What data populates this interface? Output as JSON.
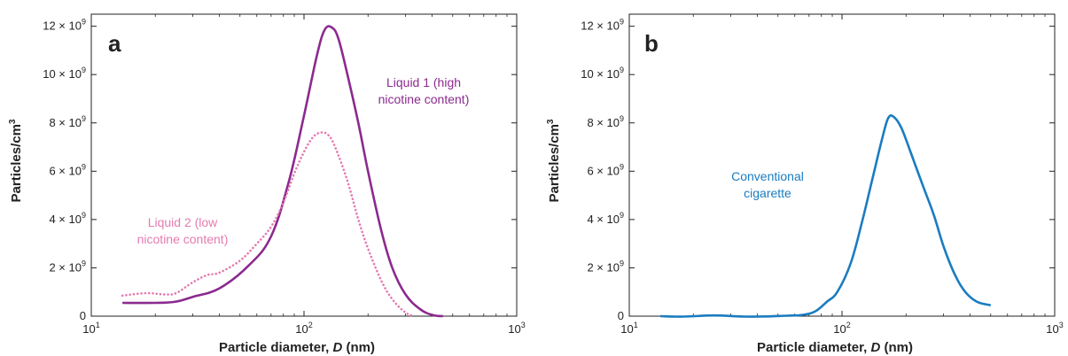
{
  "chart_data": [
    {
      "type": "line",
      "panel_label": "a",
      "xlabel_prefix": "Particle diameter, ",
      "xlabel_var": "D",
      "xlabel_suffix": " (nm)",
      "ylabel": "Particles/cm",
      "ylabel_sup": "3",
      "x_scale": "log",
      "xlim": [
        10,
        1000
      ],
      "ylim": [
        0,
        12500000000.0
      ],
      "x_ticks": [
        {
          "value": 10,
          "base": "10",
          "exp": "1"
        },
        {
          "value": 100,
          "base": "10",
          "exp": "2"
        },
        {
          "value": 1000,
          "base": "10",
          "exp": "3"
        }
      ],
      "y_ticks": [
        {
          "value": 0,
          "mant": "0",
          "sep": "",
          "base": "",
          "exp": ""
        },
        {
          "value": 2000000000.0,
          "mant": "2",
          "sep": " × ",
          "base": "10",
          "exp": "9"
        },
        {
          "value": 4000000000.0,
          "mant": "4",
          "sep": " × ",
          "base": "10",
          "exp": "9"
        },
        {
          "value": 6000000000.0,
          "mant": "6",
          "sep": " × ",
          "base": "10",
          "exp": "9"
        },
        {
          "value": 8000000000.0,
          "mant": "8",
          "sep": " × ",
          "base": "10",
          "exp": "9"
        },
        {
          "value": 10000000000.0,
          "mant": "10",
          "sep": " × ",
          "base": "10",
          "exp": "9"
        },
        {
          "value": 12000000000.0,
          "mant": "12",
          "sep": " × ",
          "base": "10",
          "exp": "9"
        }
      ],
      "grid": false,
      "series": [
        {
          "name_lines": [
            "Liquid 1 (high",
            "nicotine content)"
          ],
          "color": "#8b2a8e",
          "style": "solid",
          "label_position": "upper-right",
          "x": [
            14,
            20,
            25,
            30,
            40,
            55,
            70,
            85,
            100,
            115,
            125,
            135,
            145,
            160,
            180,
            200,
            230,
            260,
            300,
            350,
            400,
            450
          ],
          "y": [
            550000000.0,
            550000000.0,
            600000000.0,
            800000000.0,
            1150000000.0,
            2100000000.0,
            3300000000.0,
            5600000000.0,
            8300000000.0,
            10800000000.0,
            11850000000.0,
            11950000000.0,
            11500000000.0,
            10000000000.0,
            8000000000.0,
            6000000000.0,
            3600000000.0,
            2000000000.0,
            900000000.0,
            300000000.0,
            50000000.0,
            0
          ]
        },
        {
          "name_lines": [
            "Liquid 2 (low",
            "nicotine content)"
          ],
          "color": "#e57ab0",
          "style": "dotted",
          "label_position": "left",
          "x": [
            14,
            18,
            22,
            25,
            30,
            35,
            40,
            50,
            60,
            70,
            80,
            90,
            100,
            110,
            120,
            130,
            140,
            160,
            180,
            200,
            230,
            260,
            300,
            330
          ],
          "y": [
            850000000.0,
            950000000.0,
            900000000.0,
            950000000.0,
            1400000000.0,
            1700000000.0,
            1800000000.0,
            2300000000.0,
            3000000000.0,
            3700000000.0,
            4700000000.0,
            5900000000.0,
            6800000000.0,
            7400000000.0,
            7600000000.0,
            7500000000.0,
            7000000000.0,
            5600000000.0,
            4000000000.0,
            2800000000.0,
            1500000000.0,
            700000000.0,
            150000000.0,
            0
          ]
        }
      ]
    },
    {
      "type": "line",
      "panel_label": "b",
      "xlabel_prefix": "Particle diameter, ",
      "xlabel_var": "D",
      "xlabel_suffix": " (nm)",
      "ylabel": "Particles/cm",
      "ylabel_sup": "3",
      "x_scale": "log",
      "xlim": [
        10,
        1000
      ],
      "ylim": [
        0,
        12500000000.0
      ],
      "x_ticks": [
        {
          "value": 10,
          "base": "10",
          "exp": "1"
        },
        {
          "value": 100,
          "base": "10",
          "exp": "2"
        },
        {
          "value": 1000,
          "base": "10",
          "exp": "3"
        }
      ],
      "y_ticks": [
        {
          "value": 0,
          "mant": "0",
          "sep": "",
          "base": "",
          "exp": ""
        },
        {
          "value": 2000000000.0,
          "mant": "2",
          "sep": " × ",
          "base": "10",
          "exp": "9"
        },
        {
          "value": 4000000000.0,
          "mant": "4",
          "sep": " × ",
          "base": "10",
          "exp": "9"
        },
        {
          "value": 6000000000.0,
          "mant": "6",
          "sep": " × ",
          "base": "10",
          "exp": "9"
        },
        {
          "value": 8000000000.0,
          "mant": "8",
          "sep": " × ",
          "base": "10",
          "exp": "9"
        },
        {
          "value": 10000000000.0,
          "mant": "10",
          "sep": " × ",
          "base": "10",
          "exp": "9"
        },
        {
          "value": 12000000000.0,
          "mant": "12",
          "sep": " × ",
          "base": "10",
          "exp": "9"
        }
      ],
      "grid": false,
      "series": [
        {
          "name_lines": [
            "Conventional",
            "cigarette"
          ],
          "color": "#1a7cc0",
          "style": "solid",
          "label_position": "left",
          "x": [
            14,
            18,
            25,
            35,
            45,
            55,
            65,
            75,
            85,
            95,
            110,
            125,
            140,
            155,
            165,
            175,
            190,
            210,
            240,
            270,
            300,
            340,
            380,
            430,
            500
          ],
          "y": [
            0,
            -20000000.0,
            30000000.0,
            -20000000.0,
            -10000000.0,
            20000000.0,
            50000000.0,
            200000000.0,
            600000000.0,
            1000000000.0,
            2200000000.0,
            4000000000.0,
            5800000000.0,
            7400000000.0,
            8200000000.0,
            8250000000.0,
            7800000000.0,
            6800000000.0,
            5400000000.0,
            4200000000.0,
            2900000000.0,
            1700000000.0,
            1000000000.0,
            600000000.0,
            450000000.0
          ]
        }
      ]
    }
  ]
}
